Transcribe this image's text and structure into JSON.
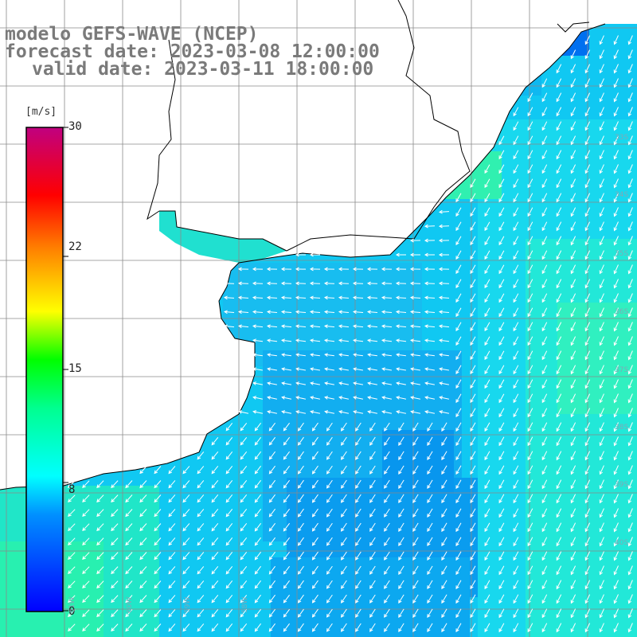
{
  "title": {
    "line1": "modelo GEFS-WAVE (NCEP)",
    "line2": "forecast date: 2023-03-08 12:00:00",
    "line3": "valid date: 2023-03-11 18:00:00"
  },
  "colorbar": {
    "unit": "[m/s]",
    "ticks": [
      {
        "label": "30",
        "value": 30
      },
      {
        "label": "22",
        "value": 22
      },
      {
        "label": "15",
        "value": 15
      },
      {
        "label": "8",
        "value": 8
      },
      {
        "label": "0",
        "value": 0
      }
    ],
    "stops": [
      "#0000ff",
      "#0090ff",
      "#00ffff",
      "#00ff80",
      "#00ff00",
      "#ffff00",
      "#ff8000",
      "#ff0000",
      "#c00080"
    ]
  },
  "map": {
    "lat_labels": [
      "33S",
      "34S",
      "35S",
      "36S",
      "37S",
      "38S",
      "39S",
      "40S"
    ],
    "lon_labels": [
      "61W",
      "60W",
      "59W",
      "58W"
    ],
    "land_color": "#ffffff",
    "grid_color": "#888888",
    "ocean_colors": {
      "deep": "#0090ee",
      "mid": "#10c0f0",
      "light": "#00f0e8",
      "green": "#20e8a0"
    },
    "wind_direction": "southwest"
  }
}
